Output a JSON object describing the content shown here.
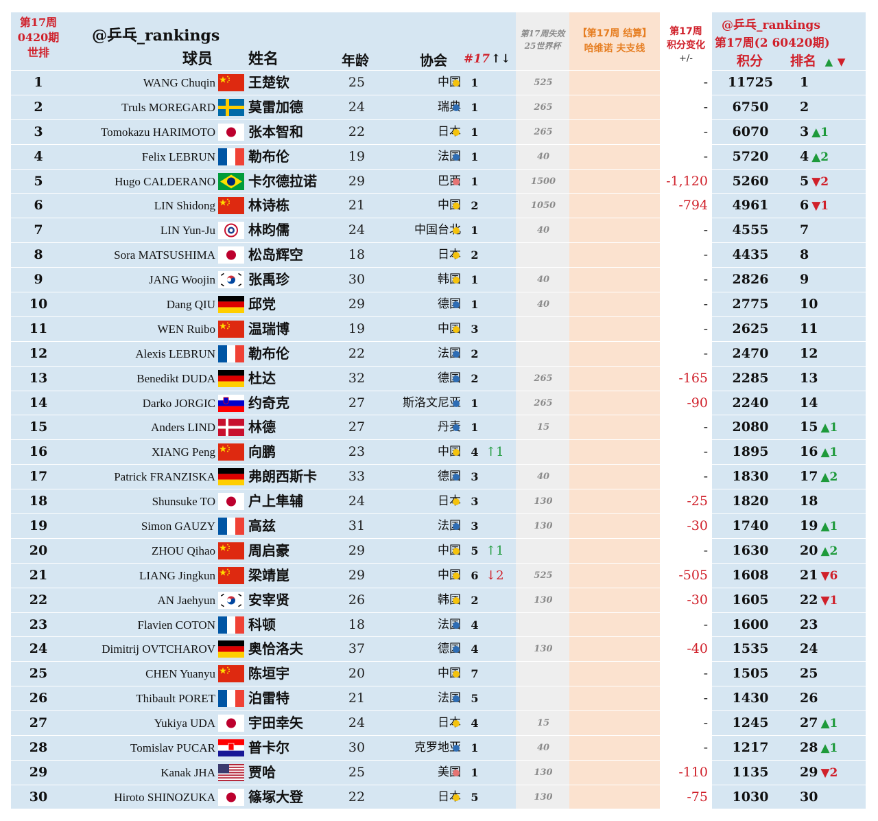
{
  "header": {
    "week_label_line1": "第17周",
    "week_label_line2": "0420期",
    "week_label_line3": "世排",
    "watermark": "@乒乓_rankings",
    "col_player": "球员",
    "col_name": "姓名",
    "col_age": "年龄",
    "col_assoc": "协会",
    "col_nat_rank": "#17",
    "col_nat_rank_arrows": "↑↓",
    "col_lost_line1": "第17周失效",
    "col_lost_line2": "25世界杯",
    "col_event_line1": "【第17周 结算】",
    "col_event_line2": "哈维诺 夫支线",
    "col_change_line1": "第17周",
    "col_change_line2": "积分变化",
    "col_change_line3": "+/-",
    "right_watermark": "@乒乓_rankings",
    "right_issue": "第17周(2 60420期)",
    "col_points": "积分",
    "col_rank": "排名",
    "col_rank_arrows_up": "▲",
    "col_rank_arrows_down": "▼"
  },
  "colors": {
    "red_header": "#d0202a",
    "orange_header": "#e67e22",
    "sheet_bg": "#d6e6f2",
    "worldcup_col_bg": "#eeeeee",
    "event_col_bg": "#fbe2cf",
    "change_col_bg": "#ffffff",
    "up": "#1e9a3b",
    "down": "#d0202a",
    "dot_yellow": "#f4c20d",
    "dot_blue": "#2e6db4",
    "dot_pink": "#e57373"
  },
  "rows": [
    {
      "rank": "1",
      "en": "WANG Chuqin",
      "flag": "china-flag",
      "zh": "王楚钦",
      "age": "25",
      "assoc": "中国",
      "dot": "dot_yellow",
      "nat": "1",
      "natchg": "",
      "natdir": "",
      "wc": "525",
      "chg": "-",
      "pts": "11725",
      "frank": "1",
      "mv": "",
      "mvdir": ""
    },
    {
      "rank": "2",
      "en": "Truls MOREGARD",
      "flag": "sweden-flag",
      "zh": "莫雷加德",
      "age": "24",
      "assoc": "瑞典",
      "dot": "dot_blue",
      "nat": "1",
      "natchg": "",
      "natdir": "",
      "wc": "265",
      "chg": "-",
      "pts": "6750",
      "frank": "2",
      "mv": "",
      "mvdir": ""
    },
    {
      "rank": "3",
      "en": "Tomokazu HARIMOTO",
      "flag": "japan-flag",
      "zh": "张本智和",
      "age": "22",
      "assoc": "日本",
      "dot": "dot_yellow",
      "nat": "1",
      "natchg": "",
      "natdir": "",
      "wc": "265",
      "chg": "-",
      "pts": "6070",
      "frank": "3",
      "mv": "▲1",
      "mvdir": "up"
    },
    {
      "rank": "4",
      "en": "Felix LEBRUN",
      "flag": "france-flag",
      "zh": "勒布伦",
      "age": "19",
      "assoc": "法国",
      "dot": "dot_blue",
      "nat": "1",
      "natchg": "",
      "natdir": "",
      "wc": "40",
      "chg": "-",
      "pts": "5720",
      "frank": "4",
      "mv": "▲2",
      "mvdir": "up"
    },
    {
      "rank": "5",
      "en": "Hugo CALDERANO",
      "flag": "brazil-flag",
      "zh": "卡尔德拉诺",
      "age": "29",
      "assoc": "巴西",
      "dot": "dot_pink",
      "nat": "1",
      "natchg": "",
      "natdir": "",
      "wc": "1500",
      "chg": "-1,120",
      "pts": "5260",
      "frank": "5",
      "mv": "▼2",
      "mvdir": "dn"
    },
    {
      "rank": "6",
      "en": "LIN Shidong",
      "flag": "china-flag",
      "zh": "林诗栋",
      "age": "21",
      "assoc": "中国",
      "dot": "dot_yellow",
      "nat": "2",
      "natchg": "",
      "natdir": "",
      "wc": "1050",
      "chg": "-794",
      "pts": "4961",
      "frank": "6",
      "mv": "▼1",
      "mvdir": "dn"
    },
    {
      "rank": "7",
      "en": "LIN Yun-Ju",
      "flag": "chinese-taipei-flag",
      "zh": "林昀儒",
      "age": "24",
      "assoc": "中国台北",
      "dot": "dot_yellow",
      "nat": "1",
      "natchg": "",
      "natdir": "",
      "wc": "40",
      "chg": "-",
      "pts": "4555",
      "frank": "7",
      "mv": "",
      "mvdir": ""
    },
    {
      "rank": "8",
      "en": "Sora MATSUSHIMA",
      "flag": "japan-flag",
      "zh": "松岛辉空",
      "age": "18",
      "assoc": "日本",
      "dot": "dot_yellow",
      "nat": "2",
      "natchg": "",
      "natdir": "",
      "wc": "",
      "chg": "-",
      "pts": "4435",
      "frank": "8",
      "mv": "",
      "mvdir": ""
    },
    {
      "rank": "9",
      "en": "JANG Woojin",
      "flag": "korea-flag",
      "zh": "张禹珍",
      "age": "30",
      "assoc": "韩国",
      "dot": "dot_yellow",
      "nat": "1",
      "natchg": "",
      "natdir": "",
      "wc": "40",
      "chg": "-",
      "pts": "2826",
      "frank": "9",
      "mv": "",
      "mvdir": ""
    },
    {
      "rank": "10",
      "en": "Dang QIU",
      "flag": "germany-flag",
      "zh": "邱党",
      "age": "29",
      "assoc": "德国",
      "dot": "dot_blue",
      "nat": "1",
      "natchg": "",
      "natdir": "",
      "wc": "40",
      "chg": "-",
      "pts": "2775",
      "frank": "10",
      "mv": "",
      "mvdir": ""
    },
    {
      "rank": "11",
      "en": "WEN Ruibo",
      "flag": "china-flag",
      "zh": "温瑞博",
      "age": "19",
      "assoc": "中国",
      "dot": "dot_yellow",
      "nat": "3",
      "natchg": "",
      "natdir": "",
      "wc": "",
      "chg": "-",
      "pts": "2625",
      "frank": "11",
      "mv": "",
      "mvdir": ""
    },
    {
      "rank": "12",
      "en": "Alexis LEBRUN",
      "flag": "france-flag",
      "zh": "勒布伦",
      "age": "22",
      "assoc": "法国",
      "dot": "dot_blue",
      "nat": "2",
      "natchg": "",
      "natdir": "",
      "wc": "",
      "chg": "-",
      "pts": "2470",
      "frank": "12",
      "mv": "",
      "mvdir": ""
    },
    {
      "rank": "13",
      "en": "Benedikt DUDA",
      "flag": "germany-flag",
      "zh": "杜达",
      "age": "32",
      "assoc": "德国",
      "dot": "dot_blue",
      "nat": "2",
      "natchg": "",
      "natdir": "",
      "wc": "265",
      "chg": "-165",
      "pts": "2285",
      "frank": "13",
      "mv": "",
      "mvdir": ""
    },
    {
      "rank": "14",
      "en": "Darko JORGIC",
      "flag": "slovenia-flag",
      "zh": "约奇克",
      "age": "27",
      "assoc": "斯洛文尼亚",
      "dot": "dot_blue",
      "nat": "1",
      "natchg": "",
      "natdir": "",
      "wc": "265",
      "chg": "-90",
      "pts": "2240",
      "frank": "14",
      "mv": "",
      "mvdir": ""
    },
    {
      "rank": "15",
      "en": "Anders LIND",
      "flag": "denmark-flag",
      "zh": "林德",
      "age": "27",
      "assoc": "丹麦",
      "dot": "dot_blue",
      "nat": "1",
      "natchg": "",
      "natdir": "",
      "wc": "15",
      "chg": "-",
      "pts": "2080",
      "frank": "15",
      "mv": "▲1",
      "mvdir": "up"
    },
    {
      "rank": "16",
      "en": "XIANG Peng",
      "flag": "china-flag",
      "zh": "向鹏",
      "age": "23",
      "assoc": "中国",
      "dot": "dot_yellow",
      "nat": "4",
      "natchg": "↑1",
      "natdir": "up",
      "wc": "",
      "chg": "-",
      "pts": "1895",
      "frank": "16",
      "mv": "▲1",
      "mvdir": "up"
    },
    {
      "rank": "17",
      "en": "Patrick FRANZISKA",
      "flag": "germany-flag",
      "zh": "弗朗西斯卡",
      "age": "33",
      "assoc": "德国",
      "dot": "dot_blue",
      "nat": "3",
      "natchg": "",
      "natdir": "",
      "wc": "40",
      "chg": "-",
      "pts": "1830",
      "frank": "17",
      "mv": "▲2",
      "mvdir": "up"
    },
    {
      "rank": "18",
      "en": "Shunsuke TO",
      "flag": "japan-flag",
      "zh": "户上隼辅",
      "age": "24",
      "assoc": "日本",
      "dot": "dot_yellow",
      "nat": "3",
      "natchg": "",
      "natdir": "",
      "wc": "130",
      "chg": "-25",
      "pts": "1820",
      "frank": "18",
      "mv": "",
      "mvdir": ""
    },
    {
      "rank": "19",
      "en": "Simon GAUZY",
      "flag": "france-flag",
      "zh": "高兹",
      "age": "31",
      "assoc": "法国",
      "dot": "dot_blue",
      "nat": "3",
      "natchg": "",
      "natdir": "",
      "wc": "130",
      "chg": "-30",
      "pts": "1740",
      "frank": "19",
      "mv": "▲1",
      "mvdir": "up"
    },
    {
      "rank": "20",
      "en": "ZHOU Qihao",
      "flag": "china-flag",
      "zh": "周启豪",
      "age": "29",
      "assoc": "中国",
      "dot": "dot_yellow",
      "nat": "5",
      "natchg": "↑1",
      "natdir": "up",
      "wc": "",
      "chg": "-",
      "pts": "1630",
      "frank": "20",
      "mv": "▲2",
      "mvdir": "up"
    },
    {
      "rank": "21",
      "en": "LIANG Jingkun",
      "flag": "china-flag",
      "zh": "梁靖崑",
      "age": "29",
      "assoc": "中国",
      "dot": "dot_yellow",
      "nat": "6",
      "natchg": "↓2",
      "natdir": "dn",
      "wc": "525",
      "chg": "-505",
      "pts": "1608",
      "frank": "21",
      "mv": "▼6",
      "mvdir": "dn"
    },
    {
      "rank": "22",
      "en": "AN Jaehyun",
      "flag": "korea-flag",
      "zh": "安宰贤",
      "age": "26",
      "assoc": "韩国",
      "dot": "dot_yellow",
      "nat": "2",
      "natchg": "",
      "natdir": "",
      "wc": "130",
      "chg": "-30",
      "pts": "1605",
      "frank": "22",
      "mv": "▼1",
      "mvdir": "dn"
    },
    {
      "rank": "23",
      "en": "Flavien COTON",
      "flag": "france-flag",
      "zh": "科顿",
      "age": "18",
      "assoc": "法国",
      "dot": "dot_blue",
      "nat": "4",
      "natchg": "",
      "natdir": "",
      "wc": "",
      "chg": "-",
      "pts": "1600",
      "frank": "23",
      "mv": "",
      "mvdir": ""
    },
    {
      "rank": "24",
      "en": "Dimitrij OVTCHAROV",
      "flag": "germany-flag",
      "zh": "奥恰洛夫",
      "age": "37",
      "assoc": "德国",
      "dot": "dot_blue",
      "nat": "4",
      "natchg": "",
      "natdir": "",
      "wc": "130",
      "chg": "-40",
      "pts": "1535",
      "frank": "24",
      "mv": "",
      "mvdir": ""
    },
    {
      "rank": "25",
      "en": "CHEN Yuanyu",
      "flag": "china-flag",
      "zh": "陈垣宇",
      "age": "20",
      "assoc": "中国",
      "dot": "dot_yellow",
      "nat": "7",
      "natchg": "",
      "natdir": "",
      "wc": "",
      "chg": "-",
      "pts": "1505",
      "frank": "25",
      "mv": "",
      "mvdir": ""
    },
    {
      "rank": "26",
      "en": "Thibault PORET",
      "flag": "france-flag",
      "zh": "泊雷特",
      "age": "21",
      "assoc": "法国",
      "dot": "dot_blue",
      "nat": "5",
      "natchg": "",
      "natdir": "",
      "wc": "",
      "chg": "-",
      "pts": "1430",
      "frank": "26",
      "mv": "",
      "mvdir": ""
    },
    {
      "rank": "27",
      "en": "Yukiya UDA",
      "flag": "japan-flag",
      "zh": "宇田幸矢",
      "age": "24",
      "assoc": "日本",
      "dot": "dot_yellow",
      "nat": "4",
      "natchg": "",
      "natdir": "",
      "wc": "15",
      "chg": "-",
      "pts": "1245",
      "frank": "27",
      "mv": "▲1",
      "mvdir": "up"
    },
    {
      "rank": "28",
      "en": "Tomislav PUCAR",
      "flag": "croatia-flag",
      "zh": "普卡尔",
      "age": "30",
      "assoc": "克罗地亚",
      "dot": "dot_blue",
      "nat": "1",
      "natchg": "",
      "natdir": "",
      "wc": "40",
      "chg": "-",
      "pts": "1217",
      "frank": "28",
      "mv": "▲1",
      "mvdir": "up"
    },
    {
      "rank": "29",
      "en": "Kanak JHA",
      "flag": "usa-flag",
      "zh": "贾哈",
      "age": "25",
      "assoc": "美国",
      "dot": "dot_pink",
      "nat": "1",
      "natchg": "",
      "natdir": "",
      "wc": "130",
      "chg": "-110",
      "pts": "1135",
      "frank": "29",
      "mv": "▼2",
      "mvdir": "dn"
    },
    {
      "rank": "30",
      "en": "Hiroto SHINOZUKA",
      "flag": "japan-flag",
      "zh": "篠塚大登",
      "age": "22",
      "assoc": "日本",
      "dot": "dot_yellow",
      "nat": "5",
      "natchg": "",
      "natdir": "",
      "wc": "130",
      "chg": "-75",
      "pts": "1030",
      "frank": "30",
      "mv": "",
      "mvdir": ""
    }
  ]
}
